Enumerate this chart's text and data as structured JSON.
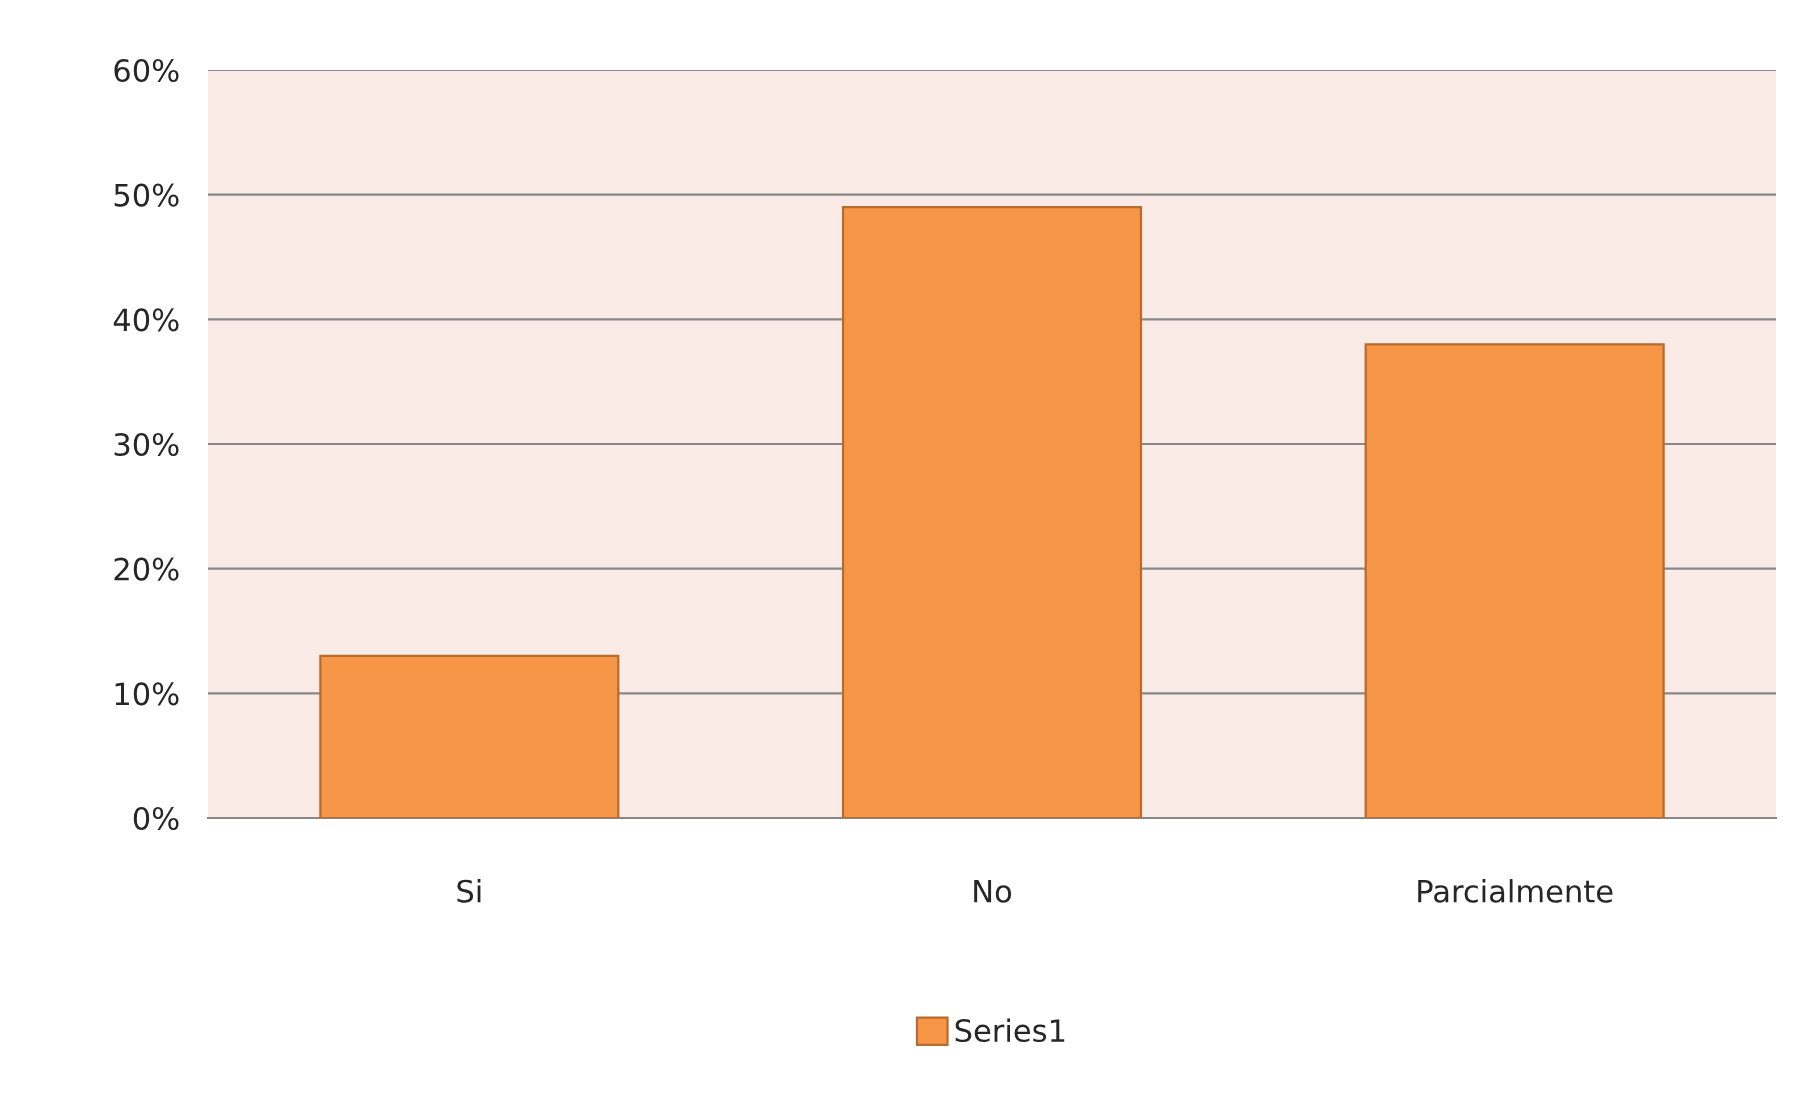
{
  "chart_data": {
    "type": "bar",
    "categories": [
      "Si",
      "No",
      "Parcialmente"
    ],
    "series": [
      {
        "name": "Series1",
        "color": "#f79646",
        "values": [
          13,
          49,
          38
        ]
      }
    ],
    "ylim": [
      0,
      60
    ],
    "yticks": [
      {
        "value": 0,
        "label": "0%"
      },
      {
        "value": 10,
        "label": "10%"
      },
      {
        "value": 20,
        "label": "20%"
      },
      {
        "value": 30,
        "label": "30%"
      },
      {
        "value": 40,
        "label": "40%"
      },
      {
        "value": 50,
        "label": "50%"
      },
      {
        "value": 60,
        "label": "60%"
      }
    ],
    "grid": "y",
    "legend": "bottom"
  }
}
